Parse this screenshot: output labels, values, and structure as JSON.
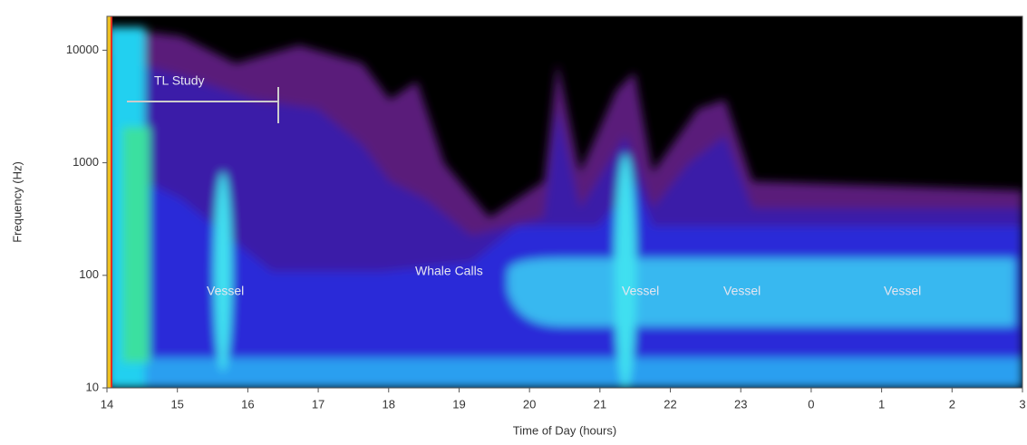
{
  "chart_data": {
    "type": "spectrogram",
    "xlabel": "Time of Day (hours)",
    "ylabel": "Frequency (Hz)",
    "xlim": [
      14,
      27
    ],
    "xticks": [
      14,
      15,
      16,
      17,
      18,
      19,
      20,
      21,
      22,
      23,
      {
        "value": 24,
        "label": "0"
      },
      {
        "value": 25,
        "label": "1"
      },
      {
        "value": 26,
        "label": "2"
      },
      {
        "value": 27,
        "label": "3"
      }
    ],
    "ylim": [
      10,
      20000
    ],
    "log_y": true,
    "yticks": [
      10,
      100,
      1000,
      10000
    ],
    "annotations": [
      "TL Study",
      "Vessel",
      "Whale Calls",
      "Vessel",
      "Vessel",
      "Vessel"
    ]
  }
}
